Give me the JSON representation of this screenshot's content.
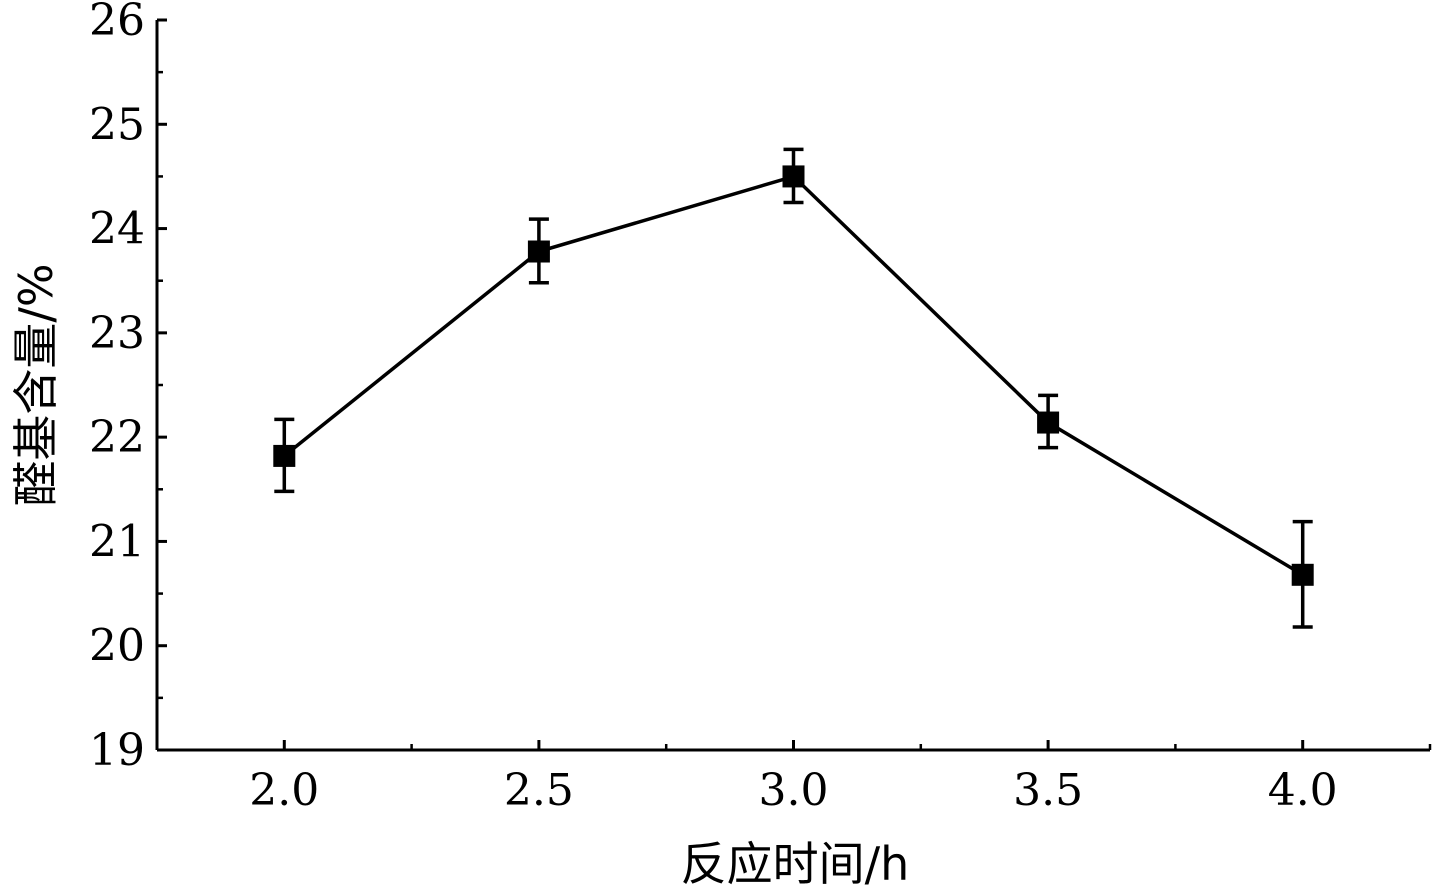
{
  "chart_data": {
    "type": "line",
    "title": "",
    "xlabel": "反应时间/h",
    "ylabel": "醛基含量/%",
    "x": [
      2.0,
      2.5,
      3.0,
      3.5,
      4.0
    ],
    "x_tick_labels": [
      "2.0",
      "2.5",
      "3.0",
      "3.5",
      "4.0"
    ],
    "y_tick_labels": [
      "19",
      "20",
      "21",
      "22",
      "23",
      "24",
      "25",
      "26"
    ],
    "xlim": [
      1.75,
      4.25
    ],
    "ylim": [
      19,
      26
    ],
    "series": [
      {
        "values": [
          21.82,
          23.78,
          24.5,
          22.14,
          20.68
        ],
        "error_low": [
          21.48,
          23.48,
          24.25,
          21.9,
          20.18
        ],
        "error_high": [
          22.17,
          24.09,
          24.76,
          22.4,
          21.19
        ],
        "marker": "square",
        "color": "#000000"
      }
    ],
    "grid": false,
    "legend": "none"
  }
}
